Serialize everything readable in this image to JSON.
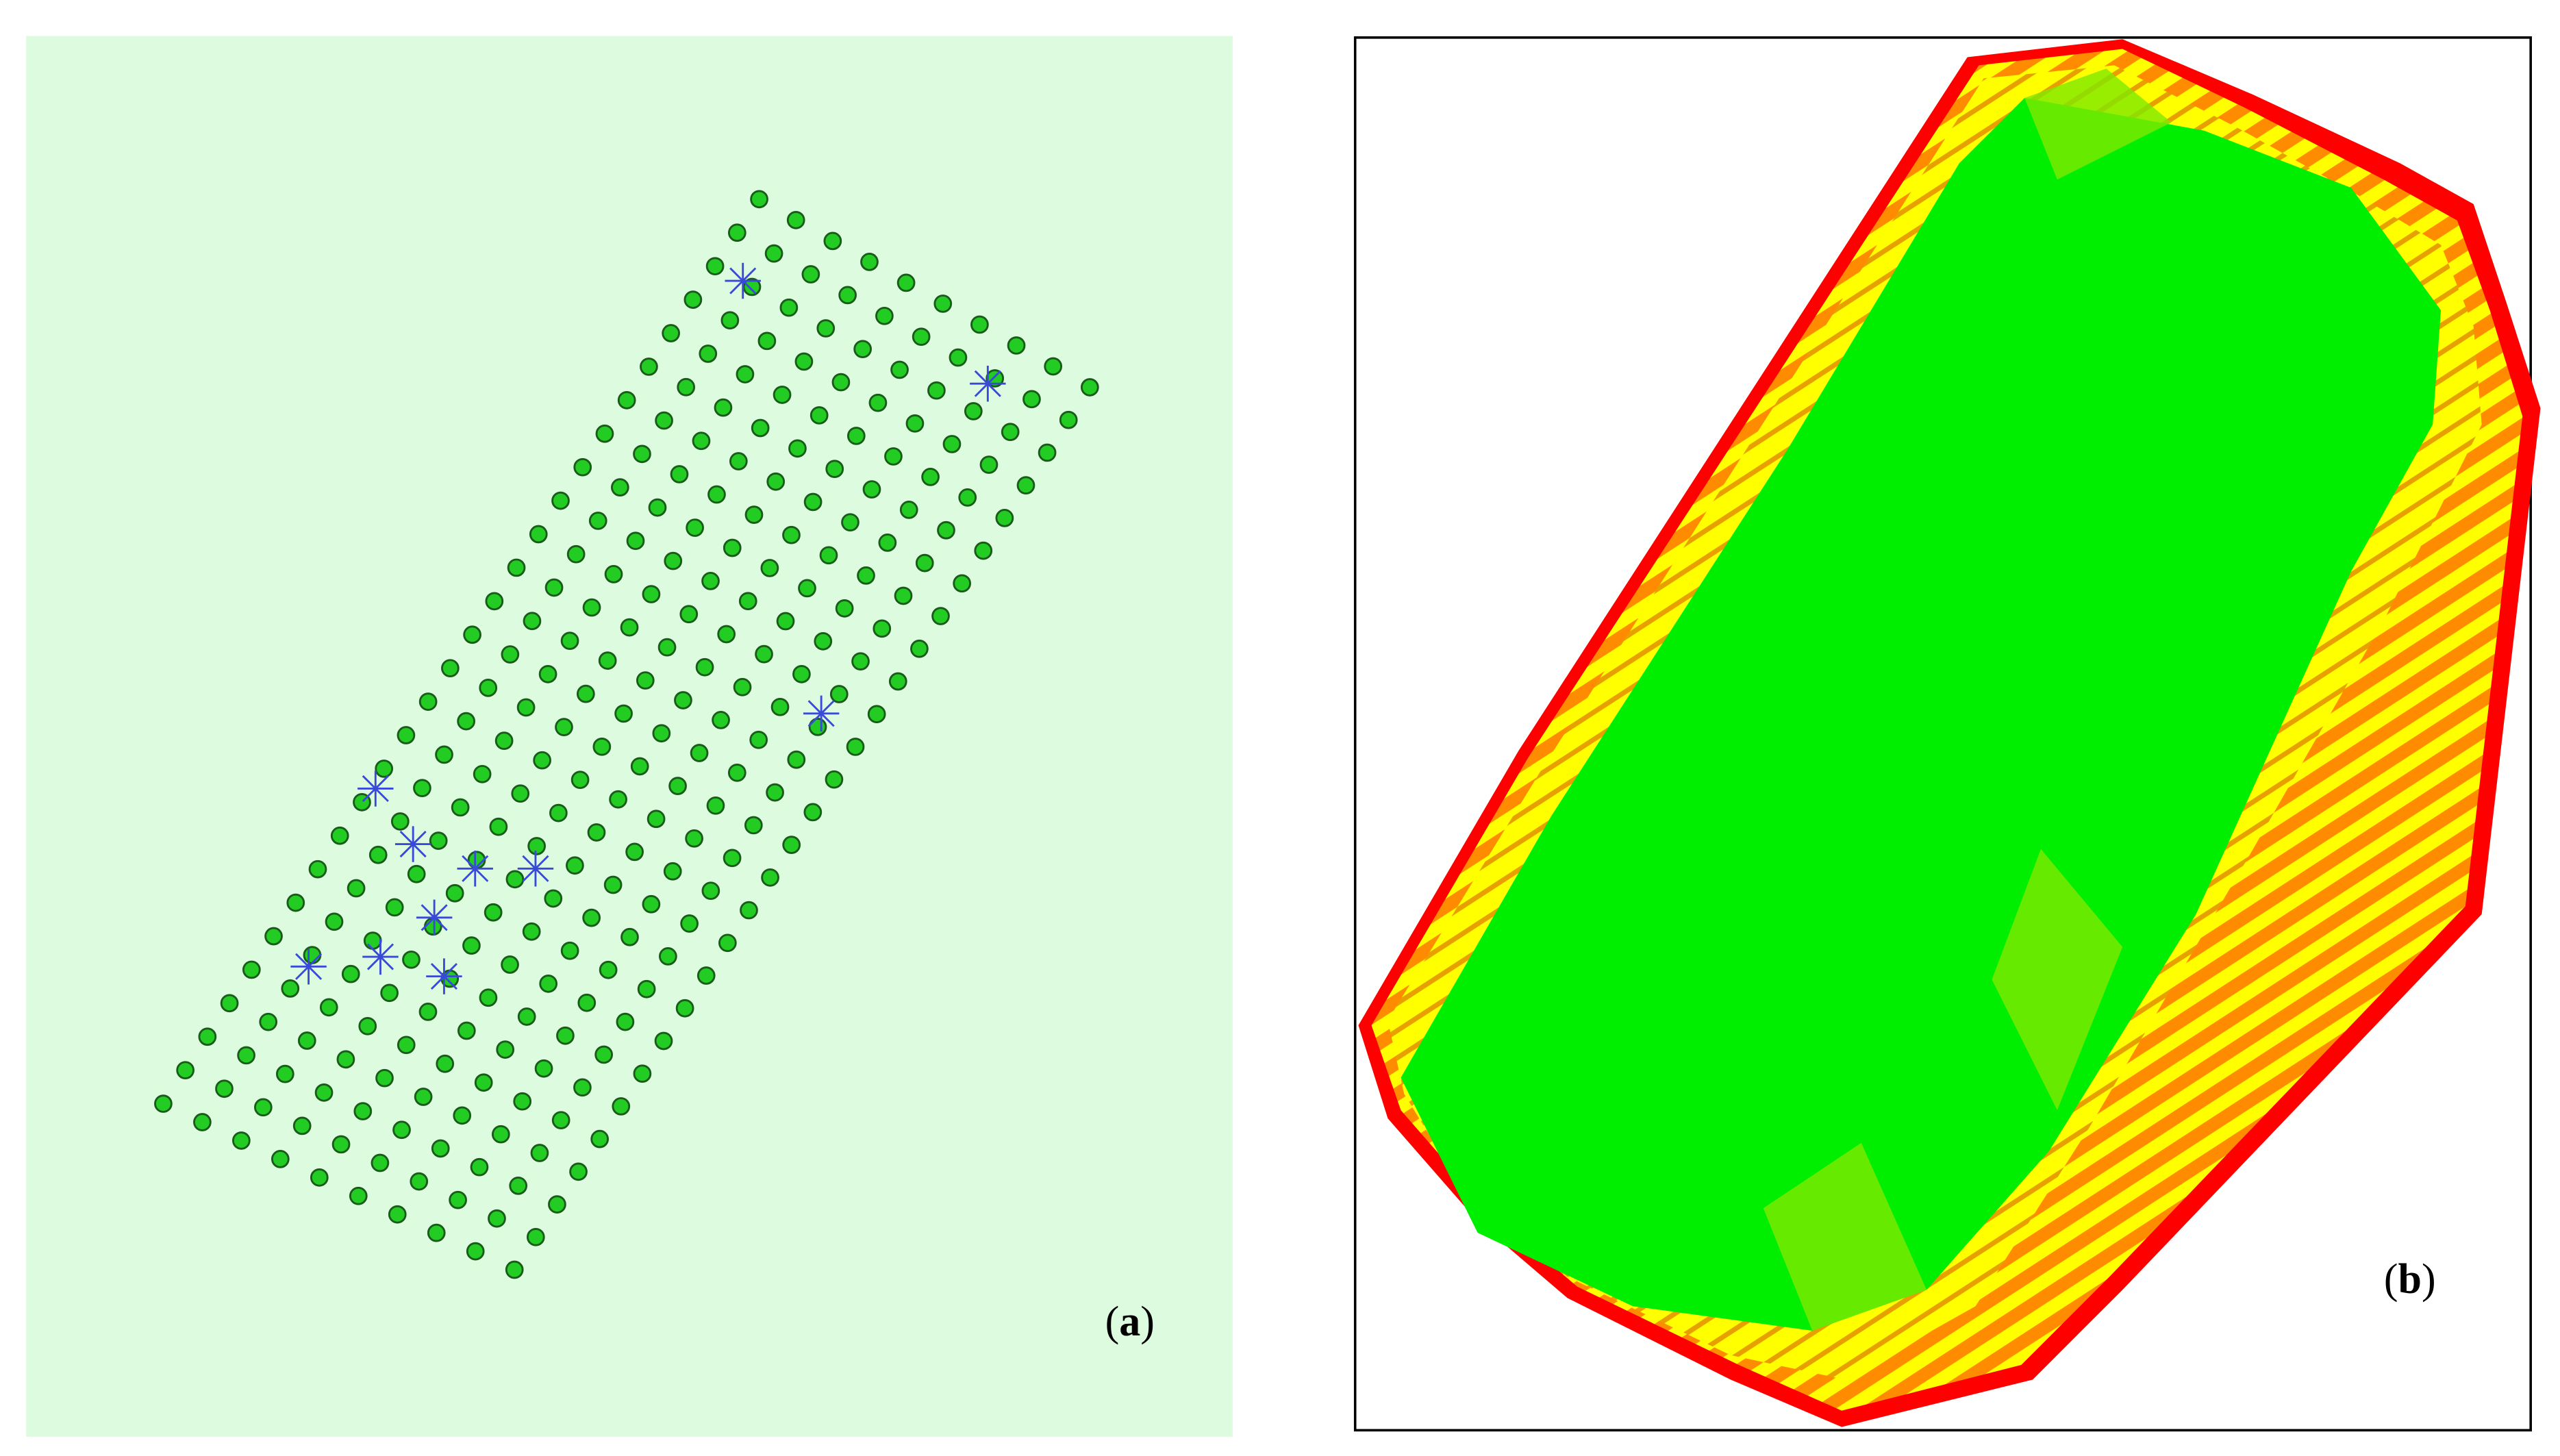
{
  "panels": [
    {
      "label_parts": [
        "(",
        "a",
        ")"
      ]
    },
    {
      "label_parts": [
        "(",
        "b",
        ")"
      ]
    }
  ]
}
